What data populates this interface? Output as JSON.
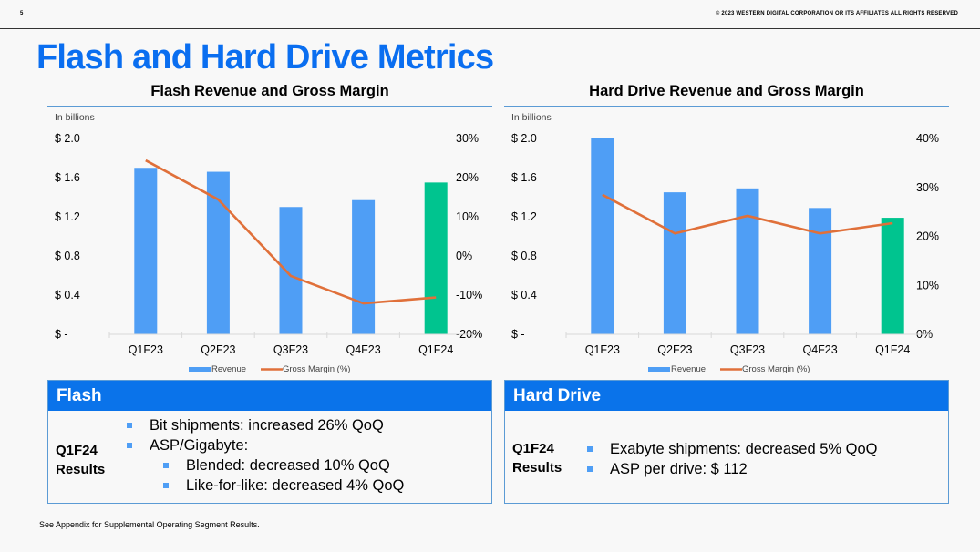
{
  "header": {
    "page_number": "5",
    "copyright": "© 2023 WESTERN DIGITAL CORPORATION OR ITS AFFILIATES  ALL RIGHTS RESERVED"
  },
  "page_title": "Flash and Hard Drive Metrics",
  "colors": {
    "title": "#0a6ef0",
    "revenue_bar": "#4f9ef5",
    "latest_bar": "#00c48f",
    "margin_line": "#e0703a",
    "box_header": "#0a73ea",
    "rule": "#5b9bd5"
  },
  "chart_data": [
    {
      "type": "bar",
      "title": "Flash Revenue and Gross Margin",
      "unit_label": "In billions",
      "categories": [
        "Q1F23",
        "Q2F23",
        "Q3F23",
        "Q4F23",
        "Q1F24"
      ],
      "series": [
        {
          "name": "Revenue",
          "type": "bar",
          "axis": "left",
          "values": [
            1.7,
            1.66,
            1.3,
            1.37,
            1.55
          ]
        },
        {
          "name": "Gross Margin (%)",
          "type": "line",
          "axis": "right",
          "values": [
            24.4,
            14.4,
            -5.1,
            -12.1,
            -10.6
          ]
        }
      ],
      "highlight_index": 4,
      "left_axis": {
        "ylim": [
          0,
          2.0
        ],
        "ticks": [
          0,
          0.4,
          0.8,
          1.2,
          1.6,
          2.0
        ],
        "tick_labels": [
          "$ -",
          "$ 0.4",
          "$ 0.8",
          "$ 1.2",
          "$ 1.6",
          "$ 2.0"
        ]
      },
      "right_axis": {
        "ylim": [
          -20,
          30
        ],
        "ticks": [
          -20,
          -10,
          0,
          10,
          20,
          30
        ],
        "tick_labels": [
          "-20%",
          "-10%",
          "0%",
          "10%",
          "20%",
          "30%"
        ]
      },
      "legend": {
        "position": "bottom",
        "entries": [
          "Revenue",
          "Gross Margin (%)"
        ]
      },
      "grid": false
    },
    {
      "type": "bar",
      "title": "Hard Drive Revenue and Gross Margin",
      "unit_label": "In billions",
      "categories": [
        "Q1F23",
        "Q2F23",
        "Q3F23",
        "Q4F23",
        "Q1F24"
      ],
      "series": [
        {
          "name": "Revenue",
          "type": "bar",
          "axis": "left",
          "values": [
            2.0,
            1.45,
            1.49,
            1.29,
            1.19
          ]
        },
        {
          "name": "Gross Margin (%)",
          "type": "line",
          "axis": "right",
          "values": [
            28.5,
            20.6,
            24.2,
            20.6,
            22.7
          ]
        }
      ],
      "highlight_index": 4,
      "left_axis": {
        "ylim": [
          0,
          2.0
        ],
        "ticks": [
          0,
          0.4,
          0.8,
          1.2,
          1.6,
          2.0
        ],
        "tick_labels": [
          "$ -",
          "$ 0.4",
          "$ 0.8",
          "$ 1.2",
          "$ 1.6",
          "$ 2.0"
        ]
      },
      "right_axis": {
        "ylim": [
          0,
          40
        ],
        "ticks": [
          0,
          10,
          20,
          30,
          40
        ],
        "tick_labels": [
          "0%",
          "10%",
          "20%",
          "30%",
          "40%"
        ]
      },
      "legend": {
        "position": "bottom",
        "entries": [
          "Revenue",
          "Gross Margin (%)"
        ]
      },
      "grid": false
    }
  ],
  "boxes": {
    "flash": {
      "header": "Flash",
      "results_label_1": "Q1F24",
      "results_label_2": "Results",
      "bullets": [
        {
          "text": "Bit shipments: increased 26% QoQ",
          "level": 1
        },
        {
          "text": "ASP/Gigabyte:",
          "level": 1
        },
        {
          "text": "Blended: decreased 10% QoQ",
          "level": 2
        },
        {
          "text": "Like-for-like: decreased 4% QoQ",
          "level": 2
        }
      ]
    },
    "hard_drive": {
      "header": "Hard Drive",
      "results_label_1": "Q1F24",
      "results_label_2": "Results",
      "bullets": [
        {
          "text": "Exabyte shipments: decreased 5% QoQ",
          "level": 1
        },
        {
          "text": "ASP per drive: $ 112",
          "level": 1
        }
      ]
    }
  },
  "footnote": "See Appendix for Supplemental Operating Segment Results."
}
